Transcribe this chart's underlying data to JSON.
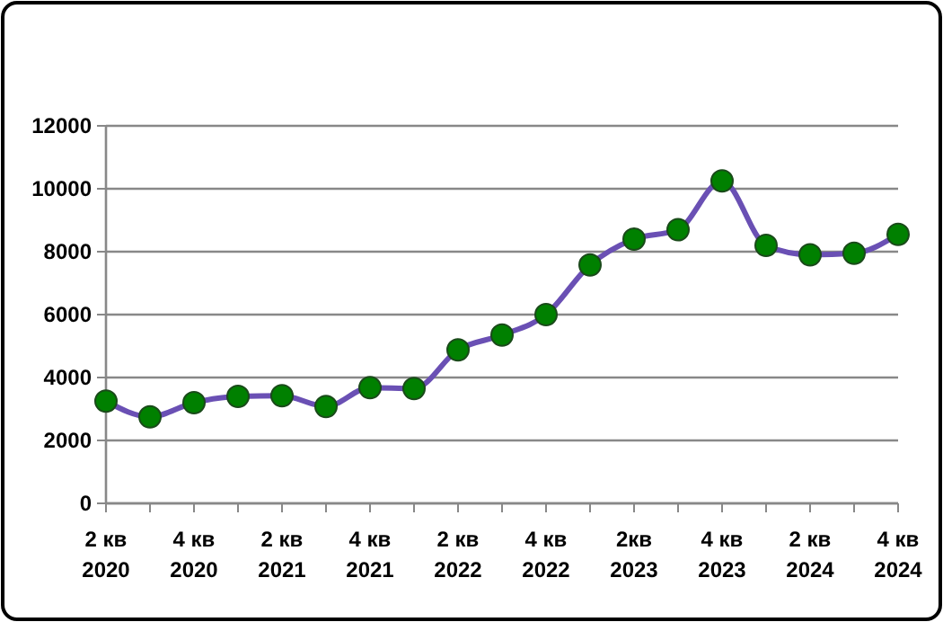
{
  "chart_data": {
    "type": "line",
    "categories": [
      "2 кв 2020",
      null,
      "4 кв 2020",
      null,
      "2 кв 2021",
      null,
      "4 кв 2021",
      null,
      "2 кв 2022",
      null,
      "4 кв 2022",
      null,
      "2кв 2023",
      null,
      "4 кв 2023",
      null,
      "2 кв 2024",
      null,
      "4 кв 2024"
    ],
    "series": [
      {
        "color": "#6a50b4",
        "colors": [
          "#008000",
          "#008000",
          "#008000",
          "#008000",
          "#008000",
          "#008000",
          "#008000",
          "#008000",
          "#008000",
          "#008000",
          "#008000",
          "#008000",
          "#008000",
          "#008000",
          "#008000",
          "#008000",
          "#008000",
          "#008000",
          "#008000"
        ],
        "values": [
          3250,
          2750,
          3200,
          3400,
          3420,
          3080,
          3680,
          3650,
          4880,
          5350,
          6000,
          7580,
          8400,
          8700,
          10250,
          8200,
          7900,
          7950,
          8550
        ]
      }
    ],
    "ylim": [
      0,
      12000
    ],
    "yticks": [
      0,
      2000,
      4000,
      6000,
      8000,
      10000,
      12000
    ],
    "grid": "y",
    "marker": "circle",
    "line_style": "solid"
  }
}
